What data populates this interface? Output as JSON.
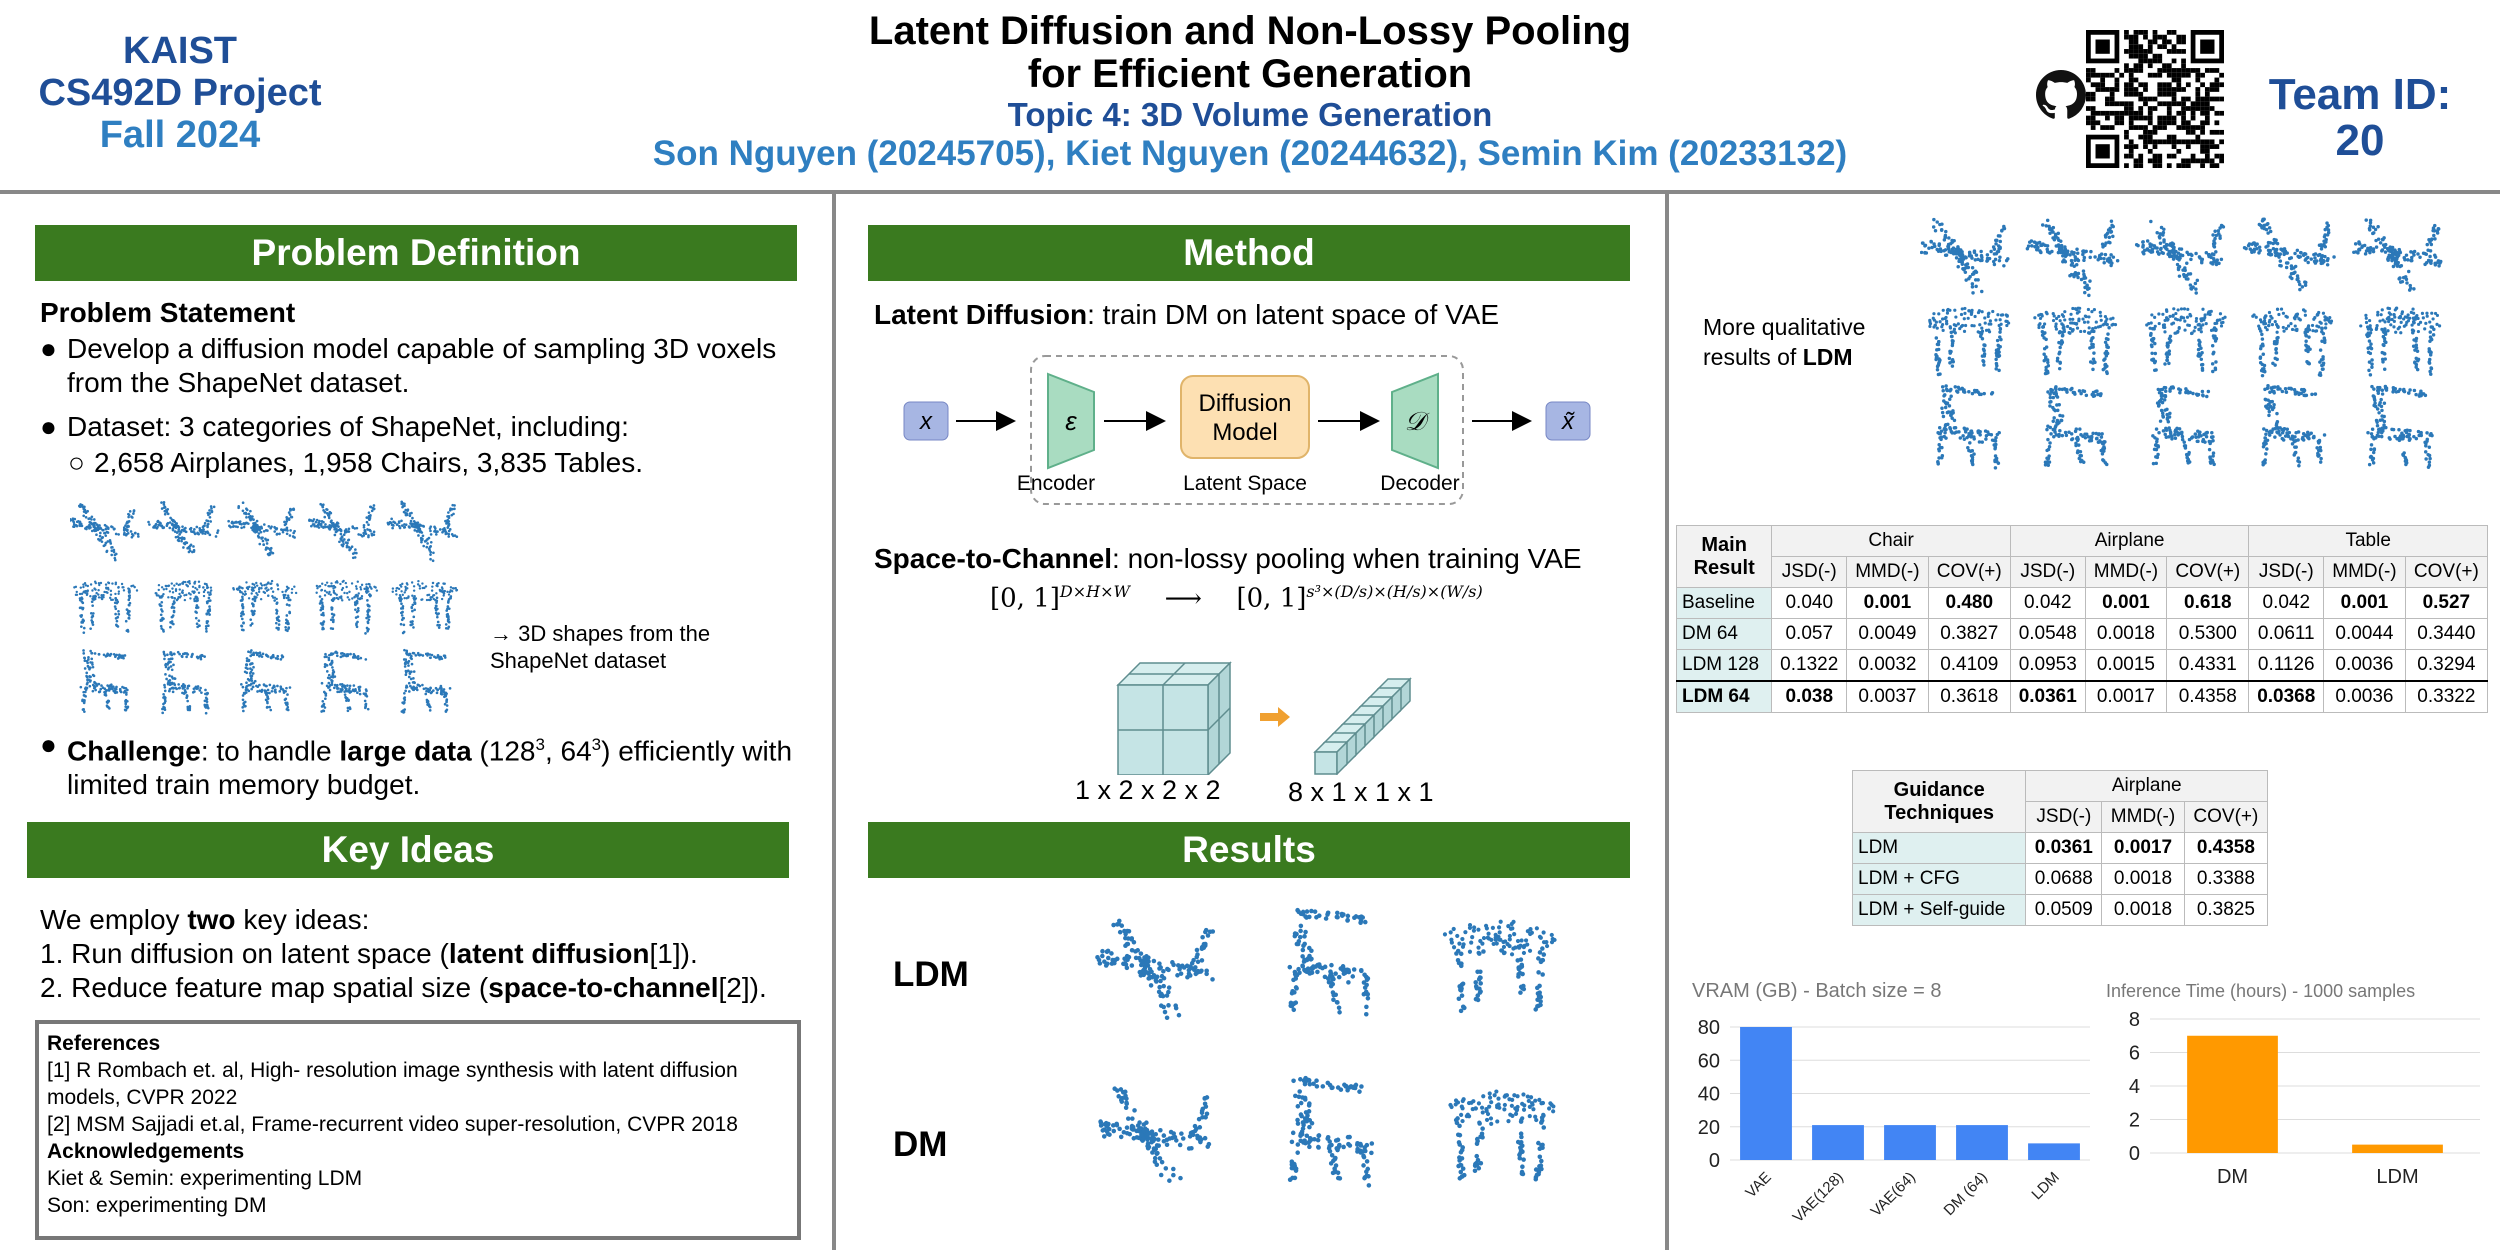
{
  "header": {
    "left_lines": [
      "KAIST",
      "CS492D Project",
      "Fall 2024"
    ],
    "title_line1": "Latent Diffusion and Non-Lossy Pooling",
    "title_line2": "for Efficient Generation",
    "topic": "Topic 4: 3D Volume Generation",
    "authors": "Son Nguyen (20245705), Kiet Nguyen (20244632), Semin Kim (20233132)",
    "team_line1": "Team ID:",
    "team_line2": "20",
    "icons": [
      "github-icon",
      "qr-code"
    ]
  },
  "problem": {
    "heading": "Problem Definition",
    "statement_title": "Problem Statement",
    "bullet1": "Develop a diffusion model capable of sampling 3D voxels from the ShapeNet dataset.",
    "bullet2": "Dataset: 3 categories of ShapeNet, including:",
    "sub_bullet": "2,658 Airplanes, 1,958 Chairs, 3,835 Tables.",
    "shapes_caption": "→ 3D shapes from the ShapeNet dataset",
    "challenge_label": "Challenge",
    "challenge_pre": ": to handle ",
    "challenge_bold": "large data",
    "challenge_post": " (128",
    "challenge_sup1": "3",
    "challenge_mid": ", 64",
    "challenge_sup2": "3",
    "challenge_end": ") efficiently with limited train memory budget."
  },
  "key_ideas": {
    "heading": "Key Ideas",
    "intro_pre": "We employ ",
    "intro_bold": "two",
    "intro_post": " key ideas:",
    "idea1_pre": "1. Run diffusion on latent space (",
    "idea1_bold": "latent diffusion",
    "idea1_post": "[1]).",
    "idea2_pre": "2. Reduce feature map spatial size (",
    "idea2_bold": "space-to-channel",
    "idea2_post": "[2])."
  },
  "references": {
    "title": "References",
    "ref1": "[1] R Rombach et. al, High- resolution image synthesis with latent diffusion models, CVPR 2022",
    "ref2": "[2] MSM Sajjadi et.al, Frame-recurrent video super-resolution, CVPR 2018",
    "ack_title": "Acknowledgements",
    "ack1": "Kiet & Semin: experimenting LDM",
    "ack2": "Son: experimenting DM"
  },
  "method": {
    "heading": "Method",
    "ld_bold": "Latent Diffusion",
    "ld_rest": ": train DM on latent space of VAE",
    "diagram": {
      "x": "x",
      "enc_sym": "ε",
      "dm_line1": "Diffusion",
      "dm_line2": "Model",
      "dec_sym": "𝒟",
      "xt": "x̃",
      "enc_label": "Encoder",
      "latent_label": "Latent Space",
      "dec_label": "Decoder"
    },
    "s2c_bold": "Space-to-Channel",
    "s2c_rest": ": non-lossy pooling when training VAE",
    "formula_left": "[0, 1]",
    "formula_left_sup": "D×H×W",
    "formula_right": "[0, 1]",
    "formula_right_sup": "s³×(D/s)×(H/s)×(W/s)",
    "cube_label1": "1 x 2 x 2 x 2",
    "cube_label2": "8 x 1 x 1 x 1"
  },
  "results": {
    "heading": "Results",
    "row1": "LDM",
    "row2": "DM"
  },
  "qualitative": {
    "text_pre": "More qualitative results of ",
    "text_bold": "LDM"
  },
  "main_table": {
    "corner_line1": "Main",
    "corner_line2": "Result",
    "groups": [
      "Chair",
      "Airplane",
      "Table"
    ],
    "metrics": [
      "JSD(-)",
      "MMD(-)",
      "COV(+)"
    ],
    "rows": [
      {
        "name": "Baseline",
        "cells": [
          "0.040",
          "0.001",
          "0.480",
          "0.042",
          "0.001",
          "0.618",
          "0.042",
          "0.001",
          "0.527"
        ],
        "bold": [
          1,
          2,
          4,
          5,
          7,
          8
        ]
      },
      {
        "name": "DM 64",
        "cells": [
          "0.057",
          "0.0049",
          "0.3827",
          "0.0548",
          "0.0018",
          "0.5300",
          "0.0611",
          "0.0044",
          "0.3440"
        ],
        "bold": []
      },
      {
        "name": "LDM 128",
        "cells": [
          "0.1322",
          "0.0032",
          "0.4109",
          "0.0953",
          "0.0015",
          "0.4331",
          "0.1126",
          "0.0036",
          "0.3294"
        ],
        "bold": []
      },
      {
        "name": "LDM 64",
        "cells": [
          "0.038",
          "0.0037",
          "0.3618",
          "0.0361",
          "0.0017",
          "0.4358",
          "0.0368",
          "0.0036",
          "0.3322"
        ],
        "bold": [
          0,
          3,
          6
        ]
      }
    ]
  },
  "guidance_table": {
    "corner_line1": "Guidance",
    "corner_line2": "Techniques",
    "group": "Airplane",
    "metrics": [
      "JSD(-)",
      "MMD(-)",
      "COV(+)"
    ],
    "rows": [
      {
        "name": "LDM",
        "cells": [
          "0.0361",
          "0.0017",
          "0.4358"
        ],
        "bold": [
          0,
          1,
          2
        ]
      },
      {
        "name": "LDM + CFG",
        "cells": [
          "0.0688",
          "0.0018",
          "0.3388"
        ],
        "bold": []
      },
      {
        "name": "LDM + Self-guide",
        "cells": [
          "0.0509",
          "0.0018",
          "0.3825"
        ],
        "bold": []
      }
    ]
  },
  "chart_data": [
    {
      "type": "bar",
      "title": "VRAM (GB) - Batch size = 8",
      "categories": [
        "VAE",
        "VAE(128)",
        "VAE(64)",
        "DM (64)",
        "LDM"
      ],
      "values": [
        80,
        21,
        21,
        21,
        10
      ],
      "ylim": [
        0,
        80
      ],
      "yticks": [
        "0",
        "20",
        "40",
        "60",
        "80"
      ],
      "color": "#4285f4",
      "grid": true
    },
    {
      "type": "bar",
      "title": "Inference Time (hours) - 1000 samples",
      "categories": [
        "DM",
        "LDM"
      ],
      "values": [
        7,
        0.5
      ],
      "ylim": [
        0,
        8
      ],
      "yticks": [
        "0",
        "2",
        "4",
        "6",
        "8"
      ],
      "color": "#ff9900",
      "grid": true
    }
  ],
  "colors": {
    "green": "#3a7a1f",
    "points": "#2b78b8",
    "dark_blue": "#1f4e97",
    "light_blue": "#2f7fc1"
  }
}
